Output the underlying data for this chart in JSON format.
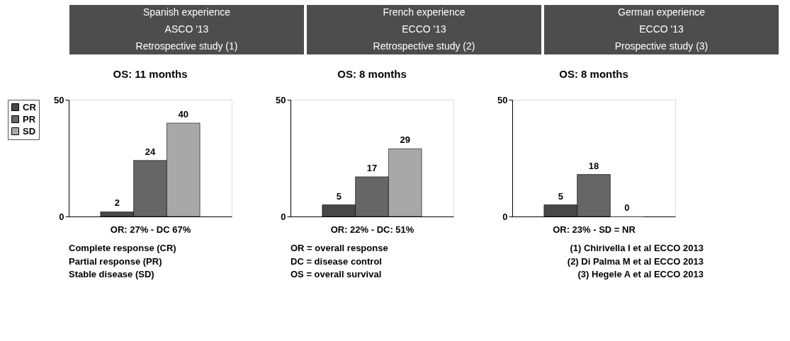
{
  "chart_data": [
    {
      "type": "bar",
      "title": "Spanish experience\nASCO '13\nRetrospective study (1)",
      "subtitle": "OS: 11 months",
      "xlabel": "OR: 27% - DC 67%",
      "categories": [
        null
      ],
      "series": [
        {
          "name": "CR",
          "color": "#474747",
          "values": [
            2
          ]
        },
        {
          "name": "PR",
          "color": "#666666",
          "values": [
            24
          ]
        },
        {
          "name": "SD",
          "color": "#a8a8a8",
          "values": [
            40
          ]
        }
      ],
      "ylim": [
        0,
        50
      ],
      "yticks": [
        0,
        50
      ],
      "data_labels": true,
      "legend": "left",
      "annotations": [
        "Complete response (CR)",
        "Partial response (PR)",
        "Stable disease (SD)"
      ]
    },
    {
      "type": "bar",
      "title": "French experience\nECCO '13\nRetrospective study (2)",
      "subtitle": "OS: 8 months",
      "xlabel": "OR: 22% - DC: 51%",
      "categories": [
        null
      ],
      "series": [
        {
          "color": "#474747",
          "values": [
            5
          ]
        },
        {
          "color": "#666666",
          "values": [
            17
          ]
        },
        {
          "color": "#a8a8a8",
          "values": [
            29
          ]
        }
      ],
      "ylim": [
        0,
        50
      ],
      "yticks": [
        0,
        50
      ],
      "data_labels": true,
      "annotations": [
        "OR = overall response",
        "DC = disease control",
        "OS = overall survival"
      ]
    },
    {
      "type": "bar",
      "title": "German experience\nECCO '13\nProspective study (3)",
      "subtitle": "OS: 8 months",
      "xlabel": "OR: 23% - SD = NR",
      "categories": [
        null
      ],
      "series": [
        {
          "color": "#474747",
          "values": [
            5
          ]
        },
        {
          "color": "#666666",
          "values": [
            18
          ]
        },
        {
          "color": "#a8a8a8",
          "values": [
            0
          ]
        }
      ],
      "ylim": [
        0,
        50
      ],
      "yticks": [
        0,
        50
      ],
      "data_labels": true,
      "annotations": [
        "(1) Chirivella I et al ECCO 2013",
        "(2) Di Palma M et al ECCO 2013",
        "(3) Hegele A et al ECCO 2013"
      ]
    }
  ]
}
